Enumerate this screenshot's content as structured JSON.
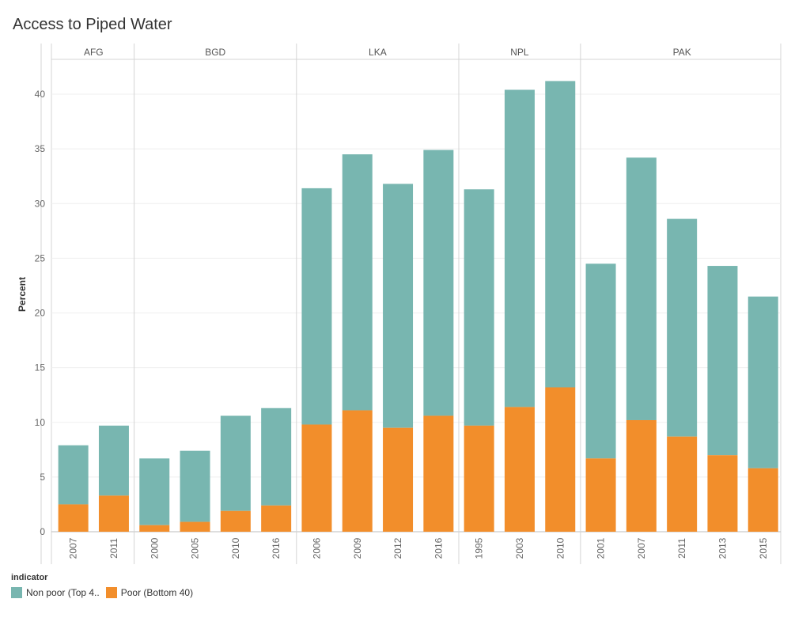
{
  "title": "Access to Piped Water",
  "colors": {
    "nonpoor": "#78b6b0",
    "poor": "#f28e2b"
  },
  "legend": {
    "title": "indicator",
    "items": [
      {
        "label": "Non poor (Top 4..",
        "color": "#78b6b0"
      },
      {
        "label": "Poor (Bottom 40)",
        "color": "#f28e2b"
      }
    ]
  },
  "chart_data": {
    "type": "bar",
    "stacked": true,
    "ylabel": "Percent",
    "ylim": [
      0,
      43
    ],
    "yticks": [
      0,
      5,
      10,
      15,
      20,
      25,
      30,
      35,
      40
    ],
    "grid": true,
    "legend_position": "bottom-left",
    "groups": [
      {
        "name": "AFG",
        "years": [
          "2007",
          "2011"
        ],
        "poor": [
          2.5,
          3.3
        ],
        "total": [
          7.9,
          9.7
        ]
      },
      {
        "name": "BGD",
        "years": [
          "2000",
          "2005",
          "2010",
          "2016"
        ],
        "poor": [
          0.6,
          0.9,
          1.9,
          2.4
        ],
        "total": [
          6.7,
          7.4,
          10.6,
          11.3
        ]
      },
      {
        "name": "LKA",
        "years": [
          "2006",
          "2009",
          "2012",
          "2016"
        ],
        "poor": [
          9.8,
          11.1,
          9.5,
          10.6
        ],
        "total": [
          31.4,
          34.5,
          31.8,
          34.9
        ]
      },
      {
        "name": "NPL",
        "years": [
          "1995",
          "2003",
          "2010"
        ],
        "poor": [
          9.7,
          11.4,
          13.2
        ],
        "total": [
          31.3,
          40.4,
          41.2
        ]
      },
      {
        "name": "PAK",
        "years": [
          "2001",
          "2007",
          "2011",
          "2013",
          "2015"
        ],
        "poor": [
          6.7,
          10.2,
          8.7,
          7.0,
          5.8
        ],
        "total": [
          24.5,
          34.2,
          28.6,
          24.3,
          21.5
        ]
      }
    ]
  }
}
